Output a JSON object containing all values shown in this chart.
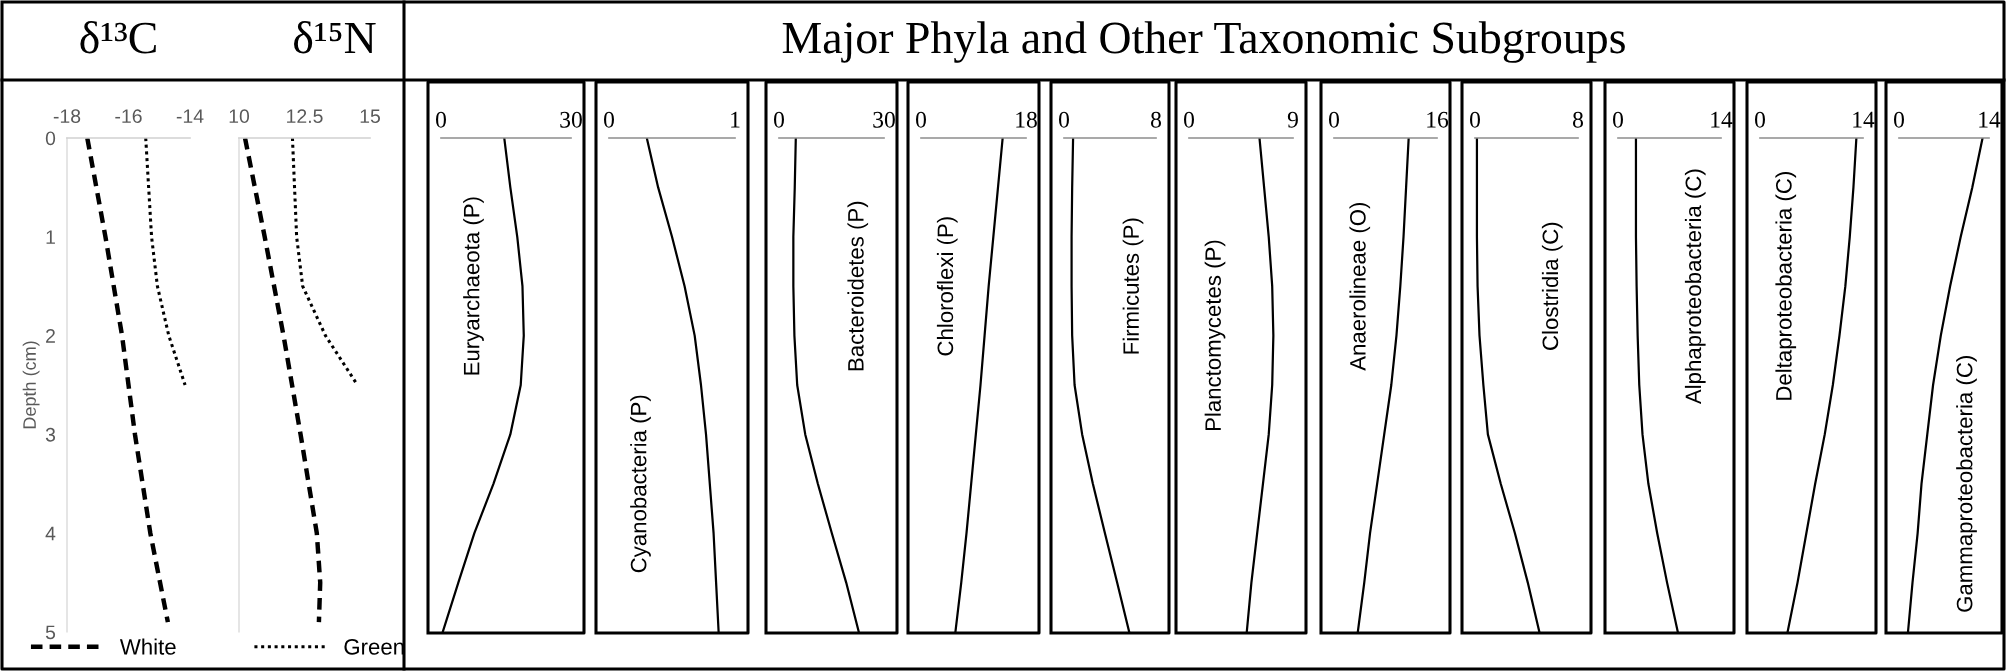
{
  "chart_data": [
    {
      "type": "line",
      "title": "δ¹³C",
      "ylabel": "Depth (cm)",
      "xlim": [
        -18,
        -14
      ],
      "xticks": [
        -18,
        -16,
        -14
      ],
      "ylim": [
        5,
        0
      ],
      "yticks": [
        0,
        1,
        2,
        3,
        4,
        5
      ],
      "legend": "bottom",
      "series": [
        {
          "name": "White",
          "color": "#000000",
          "line_style": "dashed",
          "x": [
            -17.34,
            -16.75,
            -16.21,
            -15.79,
            -15.29,
            -14.72
          ],
          "values": [
            0,
            1,
            2,
            3,
            4,
            4.9
          ]
        },
        {
          "name": "Green",
          "color": "#000000",
          "line_style": "dotted",
          "x": [
            -15.44,
            -15.25,
            -15.06,
            -14.69,
            -14.16
          ],
          "values": [
            0,
            1,
            1.5,
            2,
            2.5
          ]
        }
      ]
    },
    {
      "type": "line",
      "title": "δ¹⁵N",
      "xlim": [
        10,
        15
      ],
      "xticks": [
        10,
        12.5,
        15
      ],
      "ylim": [
        5,
        0
      ],
      "tick_labels": "x",
      "series": [
        {
          "color": "#000000",
          "line_style": "dashed",
          "x": [
            10.23,
            10.98,
            11.7,
            12.35,
            12.97,
            13.1,
            13.05
          ],
          "values": [
            0,
            1,
            2,
            3,
            4,
            4.5,
            4.9
          ]
        },
        {
          "color": "#000000",
          "line_style": "dotted",
          "x": [
            12.04,
            12.2,
            12.43,
            13.3,
            14.52
          ],
          "values": [
            0,
            1,
            1.5,
            2,
            2.5
          ]
        }
      ]
    },
    {
      "type": "other",
      "title": "Major Phyla and Other Taxonomic Subgroups"
    },
    {
      "type": "line",
      "xlim": [
        0,
        30
      ],
      "xticks": [
        0,
        30
      ],
      "ylim": [
        5,
        0
      ],
      "tick_labels": "x",
      "series": [
        {
          "name": "Euryarchaeota (P)",
          "color": "#000000",
          "x": [
            14.6,
            16.0,
            17.6,
            18.8,
            19.1,
            18.4,
            16.0,
            12.1,
            7.7,
            4.0,
            0.4
          ],
          "values": [
            0,
            0.5,
            1,
            1.5,
            2,
            2.5,
            3,
            3.5,
            4,
            4.5,
            5
          ]
        }
      ]
    },
    {
      "type": "line",
      "xlim": [
        0,
        1
      ],
      "xticks": [
        0,
        1
      ],
      "ylim": [
        5,
        0
      ],
      "tick_labels": "x",
      "series": [
        {
          "name": "Cyanobacteria (P)",
          "color": "#000000",
          "x": [
            0.3,
            0.39,
            0.5,
            0.6,
            0.68,
            0.73,
            0.77,
            0.8,
            0.83,
            0.85,
            0.87
          ],
          "values": [
            0,
            0.5,
            1,
            1.5,
            2,
            2.5,
            3,
            3.5,
            4,
            4.5,
            5
          ]
        }
      ]
    },
    {
      "type": "line",
      "xlim": [
        0,
        30
      ],
      "xticks": [
        0,
        30
      ],
      "ylim": [
        5,
        0
      ],
      "tick_labels": "x",
      "series": [
        {
          "name": "Bacteroidetes (P)",
          "color": "#000000",
          "x": [
            4.8,
            4.5,
            4.1,
            4.1,
            4.4,
            5.2,
            7.5,
            11.1,
            15.1,
            19.2,
            22.8
          ],
          "values": [
            0,
            0.5,
            1,
            1.5,
            2,
            2.5,
            3,
            3.5,
            4,
            4.5,
            5
          ]
        }
      ]
    },
    {
      "type": "line",
      "xlim": [
        0,
        18
      ],
      "xticks": [
        0,
        18
      ],
      "ylim": [
        5,
        0
      ],
      "tick_labels": "x",
      "series": [
        {
          "name": "Chloroflexi (P)",
          "color": "#000000",
          "x": [
            14.0,
            13.2,
            12.4,
            11.6,
            10.9,
            10.2,
            9.4,
            8.6,
            7.8,
            6.9,
            5.9
          ],
          "values": [
            0,
            0.5,
            1,
            1.5,
            2,
            2.5,
            3,
            3.5,
            4,
            4.5,
            5
          ]
        }
      ]
    },
    {
      "type": "line",
      "xlim": [
        0,
        8
      ],
      "xticks": [
        0,
        8
      ],
      "ylim": [
        5,
        0
      ],
      "tick_labels": "x",
      "series": [
        {
          "name": "Firmicutes (P)",
          "color": "#000000",
          "x": [
            0.79,
            0.71,
            0.66,
            0.66,
            0.71,
            0.92,
            1.58,
            2.51,
            3.56,
            4.62,
            5.67
          ],
          "values": [
            0,
            0.5,
            1,
            1.5,
            2,
            2.5,
            3,
            3.5,
            4,
            4.5,
            5
          ]
        }
      ]
    },
    {
      "type": "line",
      "xlim": [
        0,
        9
      ],
      "xticks": [
        0,
        9
      ],
      "ylim": [
        5,
        0
      ],
      "tick_labels": "x",
      "series": [
        {
          "name": "Planctomycetes (P)",
          "color": "#000000",
          "x": [
            6.1,
            6.5,
            6.9,
            7.2,
            7.3,
            7.2,
            6.9,
            6.4,
            5.9,
            5.4,
            5.0
          ],
          "values": [
            0,
            0.5,
            1,
            1.5,
            2,
            2.5,
            3,
            3.5,
            4,
            4.5,
            5
          ]
        }
      ]
    },
    {
      "type": "line",
      "xlim": [
        0,
        16
      ],
      "xticks": [
        0,
        16
      ],
      "ylim": [
        5,
        0
      ],
      "tick_labels": "x",
      "series": [
        {
          "name": "Anaerolineae (O)",
          "color": "#000000",
          "x": [
            11.6,
            11.2,
            10.8,
            10.3,
            9.7,
            8.9,
            7.8,
            6.7,
            5.6,
            4.7,
            3.7
          ],
          "values": [
            0,
            0.5,
            1,
            1.5,
            2,
            2.5,
            3,
            3.5,
            4,
            4.5,
            5
          ]
        }
      ]
    },
    {
      "type": "line",
      "xlim": [
        0,
        8
      ],
      "xticks": [
        0,
        8
      ],
      "ylim": [
        5,
        0
      ],
      "tick_labels": "x",
      "series": [
        {
          "name": "Clostridia (C)",
          "color": "#000000",
          "x": [
            0.15,
            0.15,
            0.15,
            0.2,
            0.35,
            0.65,
            1.0,
            2.0,
            3.1,
            4.1,
            5.0
          ],
          "values": [
            0,
            0.5,
            1,
            1.5,
            2,
            2.5,
            3,
            3.5,
            4,
            4.5,
            5
          ]
        }
      ]
    },
    {
      "type": "line",
      "xlim": [
        0,
        14
      ],
      "xticks": [
        0,
        14
      ],
      "ylim": [
        5,
        0
      ],
      "tick_labels": "x",
      "series": [
        {
          "name": "Alphaproteobacteria (C)",
          "color": "#000000",
          "x": [
            2.44,
            2.44,
            2.44,
            2.53,
            2.67,
            2.89,
            3.33,
            4.13,
            5.33,
            6.67,
            8.13
          ],
          "values": [
            0,
            0.5,
            1,
            1.5,
            2,
            2.5,
            3,
            3.5,
            4,
            4.5,
            5
          ]
        }
      ]
    },
    {
      "type": "line",
      "xlim": [
        0,
        14
      ],
      "xticks": [
        0,
        14
      ],
      "ylim": [
        5,
        0
      ],
      "tick_labels": "x",
      "series": [
        {
          "name": "Deltaproteobacteria (C)",
          "color": "#000000",
          "x": [
            13.1,
            12.7,
            12.2,
            11.6,
            10.8,
            9.9,
            8.8,
            7.5,
            6.3,
            5.1,
            3.75
          ],
          "values": [
            0,
            0.5,
            1,
            1.5,
            2,
            2.5,
            3,
            3.5,
            4,
            4.5,
            5
          ]
        }
      ]
    },
    {
      "type": "line",
      "xlim": [
        0,
        14
      ],
      "xticks": [
        0,
        14
      ],
      "ylim": [
        5,
        0
      ],
      "tick_labels": "x",
      "series": [
        {
          "name": "Gammaproteobacteria (C)",
          "color": "#000000",
          "x": [
            13.0,
            11.4,
            9.6,
            7.95,
            6.5,
            5.3,
            4.4,
            3.5,
            2.9,
            2.1,
            1.4
          ],
          "values": [
            0,
            0.5,
            1,
            1.5,
            2,
            2.5,
            3,
            3.5,
            4,
            4.5,
            5
          ]
        }
      ]
    }
  ]
}
